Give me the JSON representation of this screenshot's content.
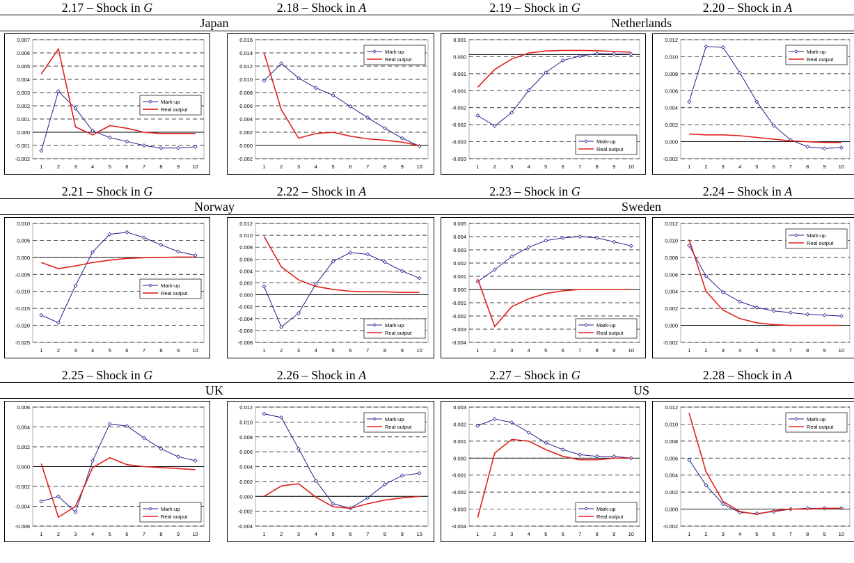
{
  "rows": [
    {
      "countries": [
        "Japan",
        "Netherlands"
      ],
      "captions": [
        {
          "prefix": "2.17 – Shock in ",
          "var": "G"
        },
        {
          "prefix": "2.18 – Shock in ",
          "var": "A"
        },
        {
          "prefix": "2.19 – Shock in ",
          "var": "G"
        },
        {
          "prefix": "2.20 – Shock in ",
          "var": "A"
        }
      ]
    },
    {
      "countries": [
        "Norway",
        "Sweden"
      ],
      "captions": [
        {
          "prefix": "2.21 – Shock in ",
          "var": "G"
        },
        {
          "prefix": "2.22 – Shock in ",
          "var": "A"
        },
        {
          "prefix": "2.23 – Shock in ",
          "var": "G"
        },
        {
          "prefix": "2.24 – Shock in ",
          "var": "A"
        }
      ]
    },
    {
      "countries": [
        "UK",
        "US"
      ],
      "captions": [
        {
          "prefix": "2.25 – Shock in ",
          "var": "G"
        },
        {
          "prefix": "2.26 – Shock in ",
          "var": "A"
        },
        {
          "prefix": "2.27 – Shock in ",
          "var": "G"
        },
        {
          "prefix": "2.28 – Shock in ",
          "var": "A"
        }
      ]
    }
  ],
  "colors": {
    "markup": "#1f1f8f",
    "output": "#e0201b",
    "grid": "#000000"
  },
  "chart_data": [
    {
      "id": "2.17",
      "type": "line",
      "x": [
        1,
        2,
        3,
        4,
        5,
        6,
        7,
        8,
        9,
        10
      ],
      "yticks": [
        "0.007",
        "0.006",
        "0.005",
        "0.004",
        "0.003",
        "0.002",
        "0.001",
        "0.000",
        "-0.001",
        "-0.002"
      ],
      "ylim": [
        -0.002,
        0.007
      ],
      "legend": "mid-right",
      "series": [
        {
          "name": "Mark-up",
          "values": [
            -0.0014,
            0.0031,
            0.0018,
            0.0001,
            -0.0004,
            -0.0007,
            -0.001,
            -0.0012,
            -0.0012,
            -0.0011
          ]
        },
        {
          "name": "Real output",
          "values": [
            0.0044,
            0.0063,
            0.0004,
            -0.0002,
            0.0005,
            0.0003,
            0.0,
            -0.0001,
            -0.0001,
            -0.0001
          ]
        }
      ]
    },
    {
      "id": "2.18",
      "type": "line",
      "x": [
        1,
        2,
        3,
        4,
        5,
        6,
        7,
        8,
        9,
        10
      ],
      "yticks": [
        "0.016",
        "0.014",
        "0.012",
        "0.010",
        "0.008",
        "0.006",
        "0.004",
        "0.002",
        "0.000",
        "-0.002"
      ],
      "ylim": [
        -0.002,
        0.016
      ],
      "legend": "top-right",
      "series": [
        {
          "name": "Mark-up",
          "values": [
            0.0098,
            0.0124,
            0.0102,
            0.0087,
            0.0076,
            0.0059,
            0.0042,
            0.0026,
            0.0011,
            -0.0001
          ]
        },
        {
          "name": "Real output",
          "values": [
            0.014,
            0.0054,
            0.0011,
            0.0018,
            0.002,
            0.0014,
            0.001,
            0.0008,
            0.0005,
            0.0
          ]
        }
      ]
    },
    {
      "id": "2.19",
      "type": "line",
      "x": [
        1,
        2,
        3,
        4,
        5,
        6,
        7,
        8,
        9,
        10
      ],
      "yticks": [
        "0.001",
        "0.000",
        "-0.001",
        "-0.001",
        "-0.002",
        "-0.002",
        "-0.003",
        "-0.003"
      ],
      "ylim": [
        -0.0035,
        0.0005
      ],
      "legend": "bottom-right",
      "series": [
        {
          "name": "Mark-up",
          "values": [
            -0.00205,
            -0.0024,
            -0.00195,
            -0.0012,
            -0.0006,
            -0.0002,
            -5e-05,
            3e-05,
            2e-05,
            1e-05
          ]
        },
        {
          "name": "Real output",
          "values": [
            -0.0011,
            -0.0005,
            -0.00015,
            5e-05,
            0.00012,
            0.00014,
            0.00014,
            0.00013,
            0.0001,
            8e-05
          ]
        }
      ]
    },
    {
      "id": "2.20",
      "type": "line",
      "x": [
        1,
        2,
        3,
        4,
        5,
        6,
        7,
        8,
        9,
        10
      ],
      "yticks": [
        "0.012",
        "0.010",
        "0.008",
        "0.006",
        "0.004",
        "0.002",
        "0.000",
        "-0.002"
      ],
      "ylim": [
        -0.002,
        0.012
      ],
      "legend": "top-right",
      "series": [
        {
          "name": "Mark-up",
          "values": [
            0.0047,
            0.0112,
            0.0111,
            0.0081,
            0.0047,
            0.0019,
            0.0002,
            -0.0006,
            -0.0008,
            -0.0007
          ]
        },
        {
          "name": "Real output",
          "values": [
            0.0009,
            0.0008,
            0.0008,
            0.0007,
            0.0005,
            0.0003,
            0.0001,
            0.0,
            -0.0001,
            -0.0001
          ]
        }
      ]
    },
    {
      "id": "2.21",
      "type": "line",
      "x": [
        1,
        2,
        3,
        4,
        5,
        6,
        7,
        8,
        9,
        10
      ],
      "yticks": [
        "0.010",
        "0.005",
        "0.000",
        "-0.005",
        "-0.010",
        "-0.015",
        "-0.020",
        "-0.025"
      ],
      "ylim": [
        -0.025,
        0.01
      ],
      "legend": "mid-right",
      "series": [
        {
          "name": "Mark-up",
          "values": [
            -0.017,
            -0.0192,
            -0.0083,
            0.0016,
            0.0068,
            0.0074,
            0.0058,
            0.0037,
            0.0017,
            0.0006
          ]
        },
        {
          "name": "Real output",
          "values": [
            -0.0015,
            -0.0033,
            -0.0025,
            -0.0015,
            -0.0008,
            -0.0003,
            -0.0001,
            0.0,
            0.0001,
            0.0001
          ]
        }
      ]
    },
    {
      "id": "2.22",
      "type": "line",
      "x": [
        1,
        2,
        3,
        4,
        5,
        6,
        7,
        8,
        9,
        10
      ],
      "yticks": [
        "0.012",
        "0.010",
        "0.008",
        "0.006",
        "0.004",
        "0.002",
        "0.000",
        "-0.002",
        "-0.004",
        "-0.006",
        "-0.008"
      ],
      "ylim": [
        -0.008,
        0.012
      ],
      "legend": "bottom-right",
      "series": [
        {
          "name": "Mark-up",
          "values": [
            0.0014,
            -0.0054,
            -0.0031,
            0.0018,
            0.0056,
            0.0071,
            0.0068,
            0.0055,
            0.004,
            0.0028
          ]
        },
        {
          "name": "Real output",
          "values": [
            0.0098,
            0.0047,
            0.0025,
            0.0014,
            0.0009,
            0.0006,
            0.0005,
            0.0005,
            0.0004,
            0.0004
          ]
        }
      ]
    },
    {
      "id": "2.23",
      "type": "line",
      "x": [
        1,
        2,
        3,
        4,
        5,
        6,
        7,
        8,
        9,
        10
      ],
      "yticks": [
        "0.005",
        "0.004",
        "0.003",
        "0.002",
        "0.001",
        "0.000",
        "-0.001",
        "-0.002",
        "-0.003",
        "-0.004"
      ],
      "ylim": [
        -0.004,
        0.005
      ],
      "legend": "bottom-right",
      "series": [
        {
          "name": "Mark-up",
          "values": [
            0.0006,
            0.0015,
            0.0025,
            0.0032,
            0.0037,
            0.0039,
            0.004,
            0.0039,
            0.0036,
            0.0033
          ]
        },
        {
          "name": "Real output",
          "values": [
            0.0008,
            -0.0028,
            -0.0013,
            -0.0007,
            -0.0003,
            -0.0001,
            0.0,
            0.0,
            0.0,
            0.0
          ]
        }
      ]
    },
    {
      "id": "2.24",
      "type": "line",
      "x": [
        1,
        2,
        3,
        4,
        5,
        6,
        7,
        8,
        9,
        10
      ],
      "yticks": [
        "0.012",
        "0.010",
        "0.008",
        "0.006",
        "0.004",
        "0.002",
        "0.000",
        "-0.002"
      ],
      "ylim": [
        -0.002,
        0.012
      ],
      "legend": "top-right",
      "series": [
        {
          "name": "Mark-up",
          "values": [
            0.0094,
            0.0058,
            0.0039,
            0.0028,
            0.0021,
            0.0017,
            0.0015,
            0.0013,
            0.0012,
            0.0011
          ]
        },
        {
          "name": "Real output",
          "values": [
            0.0101,
            0.004,
            0.0018,
            0.0008,
            0.0003,
            0.0001,
            0.0,
            0.0,
            0.0,
            0.0
          ]
        }
      ]
    },
    {
      "id": "2.25",
      "type": "line",
      "x": [
        1,
        2,
        3,
        4,
        5,
        6,
        7,
        8,
        9,
        10
      ],
      "yticks": [
        "0.006",
        "0.004",
        "0.002",
        "0.000",
        "-0.002",
        "-0.004",
        "-0.006"
      ],
      "ylim": [
        -0.006,
        0.006
      ],
      "legend": "bottom-right",
      "series": [
        {
          "name": "Mark-up",
          "values": [
            -0.0035,
            -0.003,
            -0.0046,
            0.0006,
            0.0043,
            0.0041,
            0.0029,
            0.0018,
            0.001,
            0.0006
          ]
        },
        {
          "name": "Real output",
          "values": [
            0.0003,
            -0.0051,
            -0.004,
            -0.0001,
            0.0009,
            0.0002,
            0.0,
            -0.0001,
            -0.0002,
            -0.0003
          ]
        }
      ]
    },
    {
      "id": "2.26",
      "type": "line",
      "x": [
        1,
        2,
        3,
        4,
        5,
        6,
        7,
        8,
        9,
        10
      ],
      "yticks": [
        "0.012",
        "0.010",
        "0.008",
        "0.006",
        "0.004",
        "0.002",
        "0.000",
        "-0.002",
        "-0.004"
      ],
      "ylim": [
        -0.004,
        0.012
      ],
      "legend": "top-right",
      "series": [
        {
          "name": "Mark-up",
          "values": [
            0.0111,
            0.0106,
            0.0064,
            0.0021,
            -0.001,
            -0.0016,
            -0.0002,
            0.0016,
            0.0028,
            0.0031
          ]
        },
        {
          "name": "Real output",
          "values": [
            0.0,
            0.0014,
            0.0017,
            -0.0001,
            -0.0014,
            -0.0016,
            -0.001,
            -0.0005,
            -0.0002,
            0.0
          ]
        }
      ]
    },
    {
      "id": "2.27",
      "type": "line",
      "x": [
        1,
        2,
        3,
        4,
        5,
        6,
        7,
        8,
        9,
        10
      ],
      "yticks": [
        "0.003",
        "0.002",
        "0.001",
        "0.000",
        "-0.001",
        "-0.002",
        "-0.003",
        "-0.004"
      ],
      "ylim": [
        -0.004,
        0.003
      ],
      "legend": "bottom-right",
      "series": [
        {
          "name": "Mark-up",
          "values": [
            0.0019,
            0.0023,
            0.0021,
            0.0015,
            0.0009,
            0.0005,
            0.0002,
            0.0001,
            0.0001,
            0.0
          ]
        },
        {
          "name": "Real output",
          "values": [
            -0.0035,
            0.0003,
            0.0011,
            0.001,
            0.0005,
            0.0001,
            -0.0001,
            -0.0001,
            0.0,
            0.0
          ]
        }
      ]
    },
    {
      "id": "2.28",
      "type": "line",
      "x": [
        1,
        2,
        3,
        4,
        5,
        6,
        7,
        8,
        9,
        10
      ],
      "yticks": [
        "0.012",
        "0.010",
        "0.008",
        "0.006",
        "0.004",
        "0.002",
        "0.000",
        "-0.002"
      ],
      "ylim": [
        -0.002,
        0.012
      ],
      "legend": "top-right",
      "series": [
        {
          "name": "Mark-up",
          "values": [
            0.0058,
            0.0028,
            0.0006,
            -0.0004,
            -0.0005,
            -0.0003,
            0.0,
            0.0001,
            0.0001,
            0.0001
          ]
        },
        {
          "name": "Real output",
          "values": [
            0.0113,
            0.0044,
            0.0009,
            -0.0003,
            -0.0006,
            -0.0002,
            0.0,
            0.0,
            0.0001,
            0.0001
          ]
        }
      ]
    }
  ]
}
